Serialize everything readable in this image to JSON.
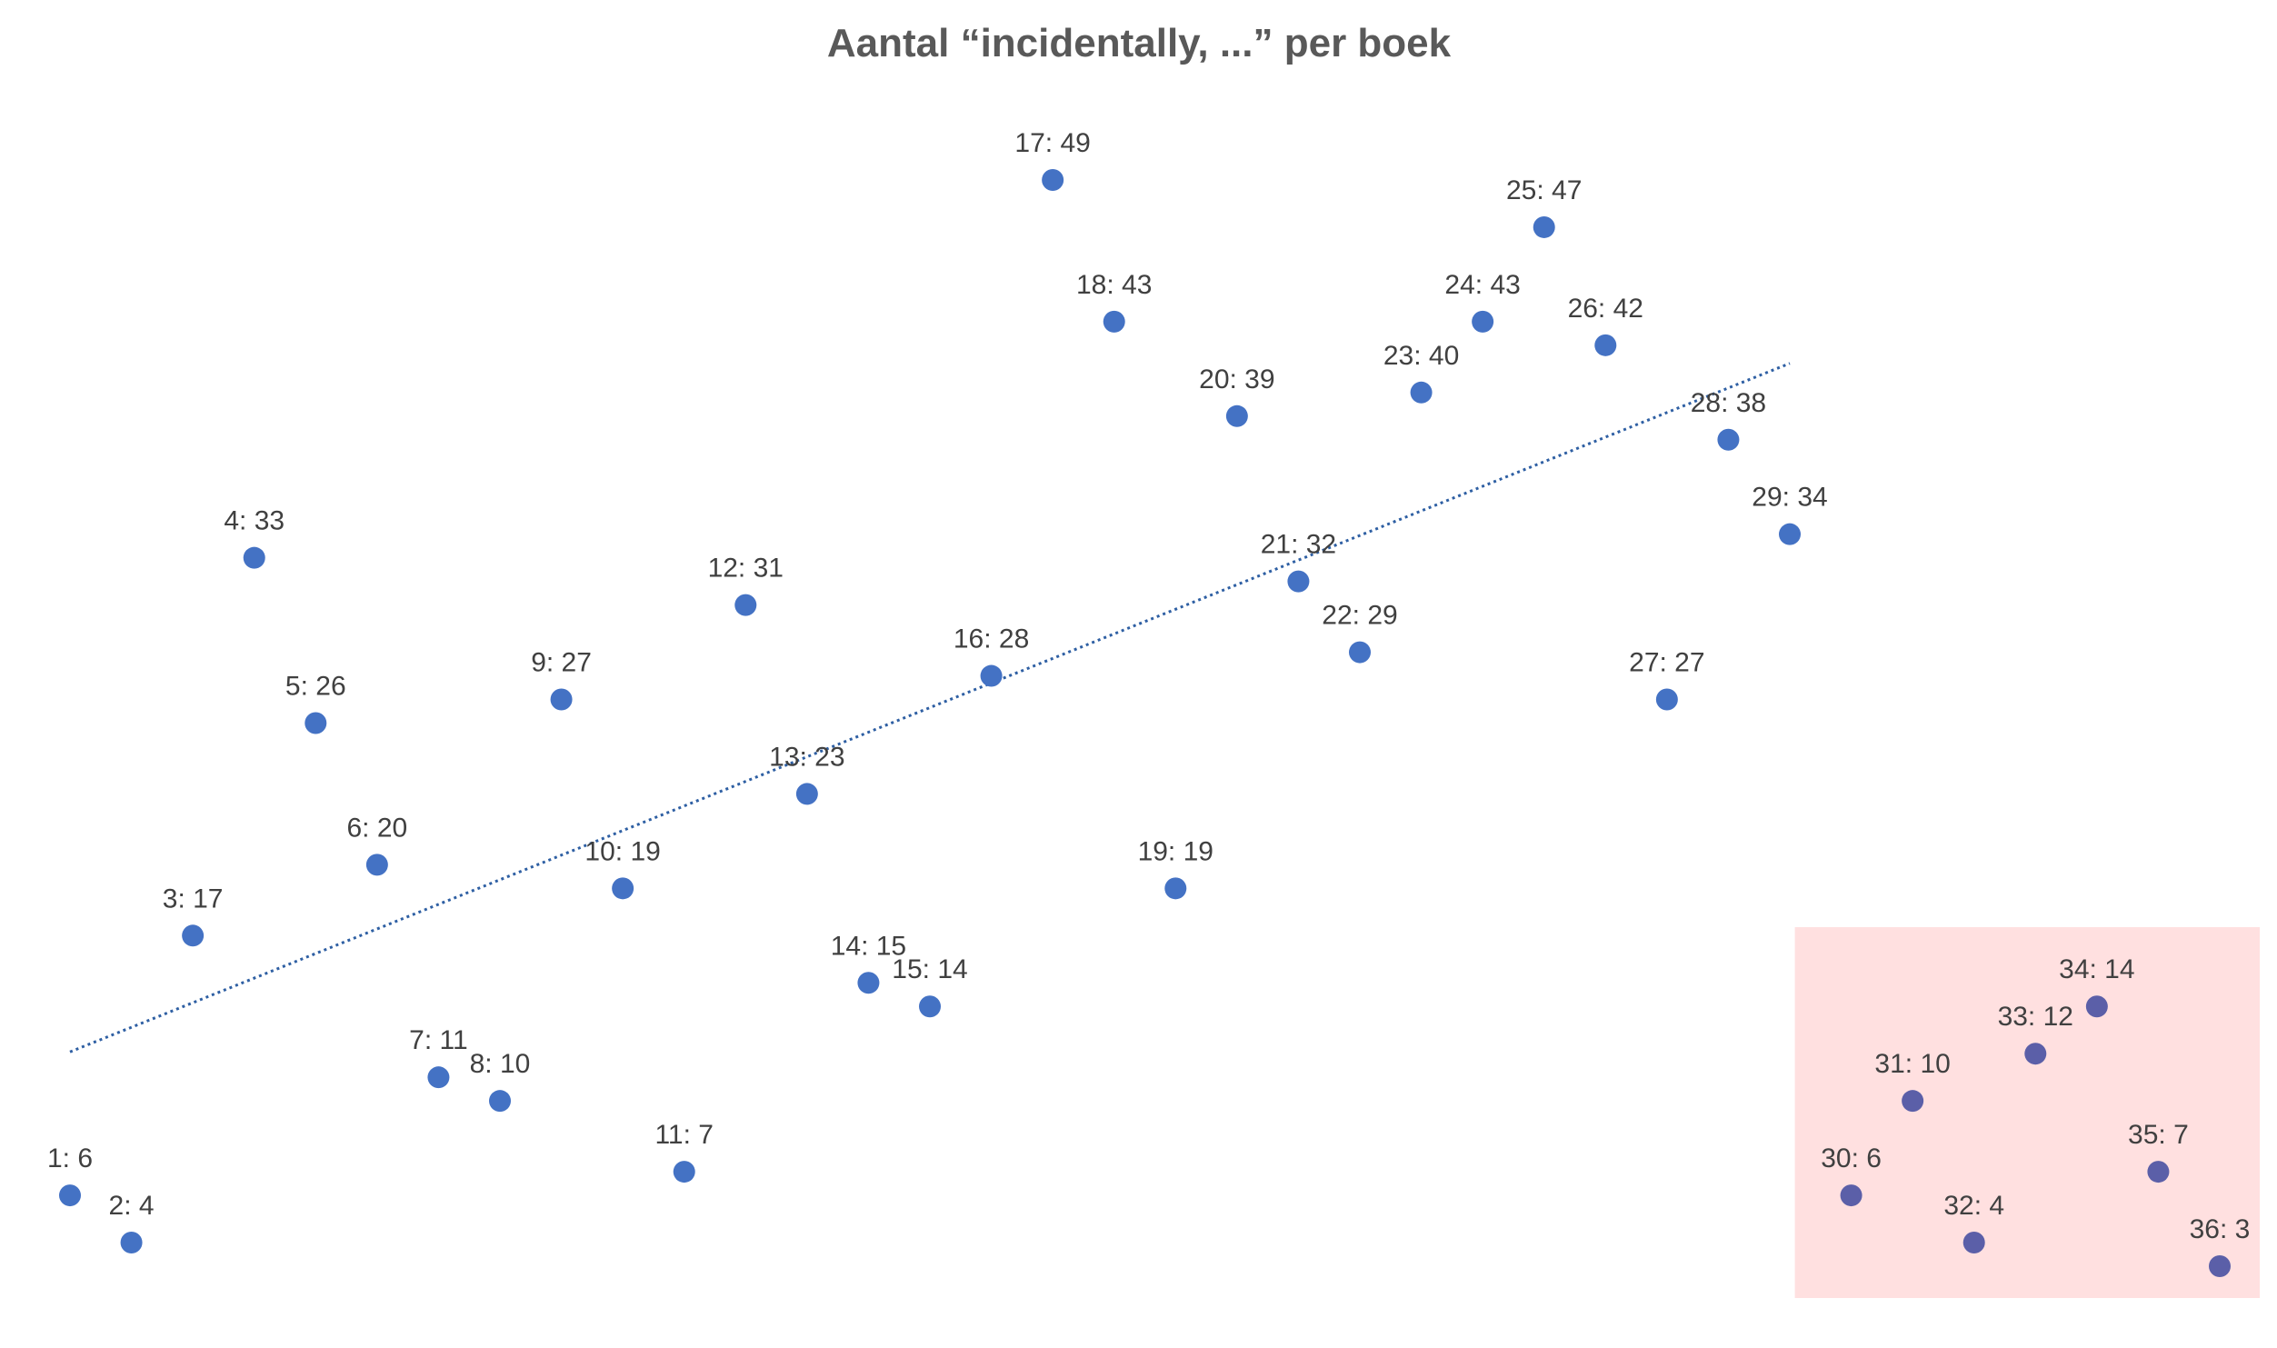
{
  "chart_data": {
    "type": "scatter",
    "title": "Aantal “incidentally, ...” per boek",
    "xlabel": "",
    "ylabel": "",
    "xlim": [
      1,
      36
    ],
    "ylim": [
      3,
      49
    ],
    "axes_visible": false,
    "grid": false,
    "legend": "none",
    "point_color": "#4472C4",
    "highlight_point_color": "#5B5FA8",
    "trendline": {
      "type": "linear",
      "style": "dotted",
      "color": "#2E5FA3",
      "x_range": [
        1,
        29
      ]
    },
    "highlight_region": {
      "x_range": [
        30,
        36
      ],
      "color": "#FFE0E0"
    },
    "points": [
      {
        "x": 1,
        "y": 6,
        "label": "1: 6"
      },
      {
        "x": 2,
        "y": 4,
        "label": "2: 4"
      },
      {
        "x": 3,
        "y": 17,
        "label": "3: 17"
      },
      {
        "x": 4,
        "y": 33,
        "label": "4: 33"
      },
      {
        "x": 5,
        "y": 26,
        "label": "5: 26"
      },
      {
        "x": 6,
        "y": 20,
        "label": "6: 20"
      },
      {
        "x": 7,
        "y": 11,
        "label": "7: 11"
      },
      {
        "x": 8,
        "y": 10,
        "label": "8: 10"
      },
      {
        "x": 9,
        "y": 27,
        "label": "9: 27"
      },
      {
        "x": 10,
        "y": 19,
        "label": "10: 19"
      },
      {
        "x": 11,
        "y": 7,
        "label": "11: 7"
      },
      {
        "x": 12,
        "y": 31,
        "label": "12: 31"
      },
      {
        "x": 13,
        "y": 23,
        "label": "13: 23"
      },
      {
        "x": 14,
        "y": 15,
        "label": "14: 15"
      },
      {
        "x": 15,
        "y": 14,
        "label": "15: 14"
      },
      {
        "x": 16,
        "y": 28,
        "label": "16: 28"
      },
      {
        "x": 17,
        "y": 49,
        "label": "17: 49"
      },
      {
        "x": 18,
        "y": 43,
        "label": "18: 43"
      },
      {
        "x": 19,
        "y": 19,
        "label": "19: 19"
      },
      {
        "x": 20,
        "y": 39,
        "label": "20: 39"
      },
      {
        "x": 21,
        "y": 32,
        "label": "21: 32"
      },
      {
        "x": 22,
        "y": 29,
        "label": "22: 29"
      },
      {
        "x": 23,
        "y": 40,
        "label": "23: 40"
      },
      {
        "x": 24,
        "y": 43,
        "label": "24: 43"
      },
      {
        "x": 25,
        "y": 47,
        "label": "25: 47"
      },
      {
        "x": 26,
        "y": 42,
        "label": "26: 42"
      },
      {
        "x": 27,
        "y": 27,
        "label": "27: 27"
      },
      {
        "x": 28,
        "y": 38,
        "label": "28: 38"
      },
      {
        "x": 29,
        "y": 34,
        "label": "29: 34"
      },
      {
        "x": 30,
        "y": 6,
        "label": "30: 6"
      },
      {
        "x": 31,
        "y": 10,
        "label": "31: 10"
      },
      {
        "x": 32,
        "y": 4,
        "label": "32: 4"
      },
      {
        "x": 33,
        "y": 12,
        "label": "33: 12"
      },
      {
        "x": 34,
        "y": 14,
        "label": "34: 14"
      },
      {
        "x": 35,
        "y": 7,
        "label": "35: 7"
      },
      {
        "x": 36,
        "y": 3,
        "label": "36: 3"
      }
    ]
  }
}
